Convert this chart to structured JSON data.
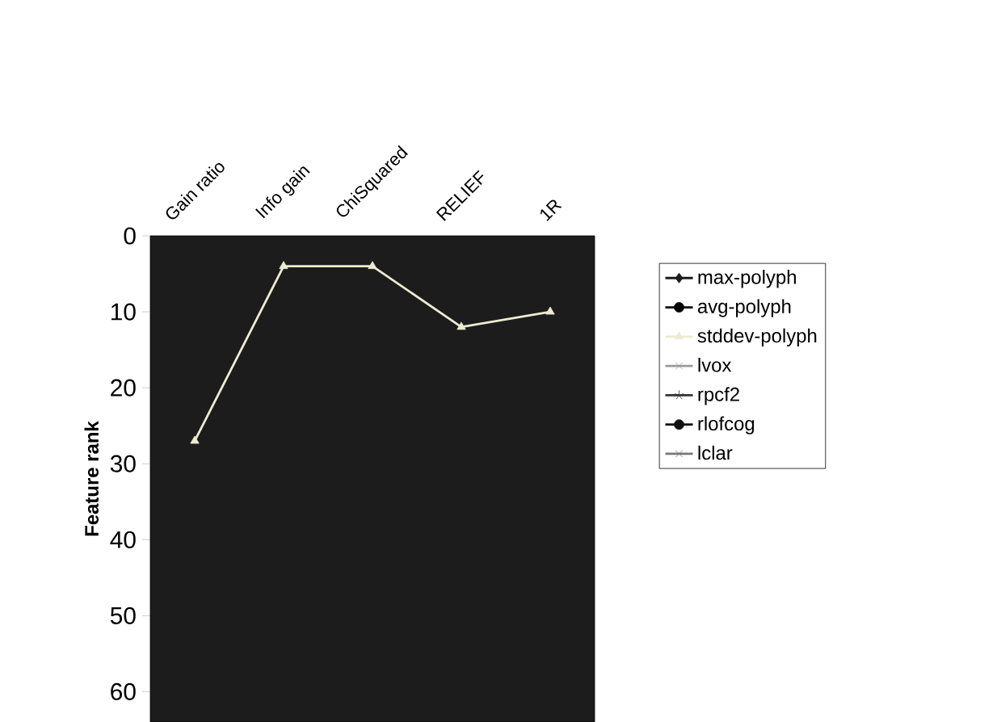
{
  "chart_data": {
    "type": "line",
    "ylabel": "Feature rank",
    "categories": [
      "Gain ratio",
      "Info gain",
      "ChiSquared",
      "RELIEF",
      "1R"
    ],
    "ylim": [
      64,
      0
    ],
    "yticks": [
      0,
      10,
      20,
      30,
      40,
      50,
      60
    ],
    "legend": "right",
    "grid": false,
    "series": [
      {
        "name": "max-polyph",
        "color": "#1a1a1a",
        "marker": "diamond",
        "values": [
          null,
          null,
          null,
          null,
          null
        ]
      },
      {
        "name": "avg-polyph",
        "color": "#000000",
        "marker": "circle",
        "values": [
          null,
          null,
          null,
          null,
          null
        ]
      },
      {
        "name": "stddev-polyph",
        "color": "#ecebd2",
        "marker": "triangle",
        "values": [
          27,
          4,
          4,
          12,
          10
        ]
      },
      {
        "name": "lvox",
        "color": "#9a9a9a",
        "marker": "cross",
        "values": [
          null,
          null,
          null,
          null,
          null
        ]
      },
      {
        "name": "rpcf2",
        "color": "#333333",
        "marker": "star",
        "values": [
          null,
          null,
          null,
          null,
          null
        ]
      },
      {
        "name": "rlofcog",
        "color": "#111111",
        "marker": "circle",
        "values": [
          null,
          null,
          null,
          null,
          null
        ]
      },
      {
        "name": "lclar",
        "color": "#777777",
        "marker": "cross",
        "values": [
          null,
          null,
          null,
          null,
          null
        ]
      }
    ]
  }
}
